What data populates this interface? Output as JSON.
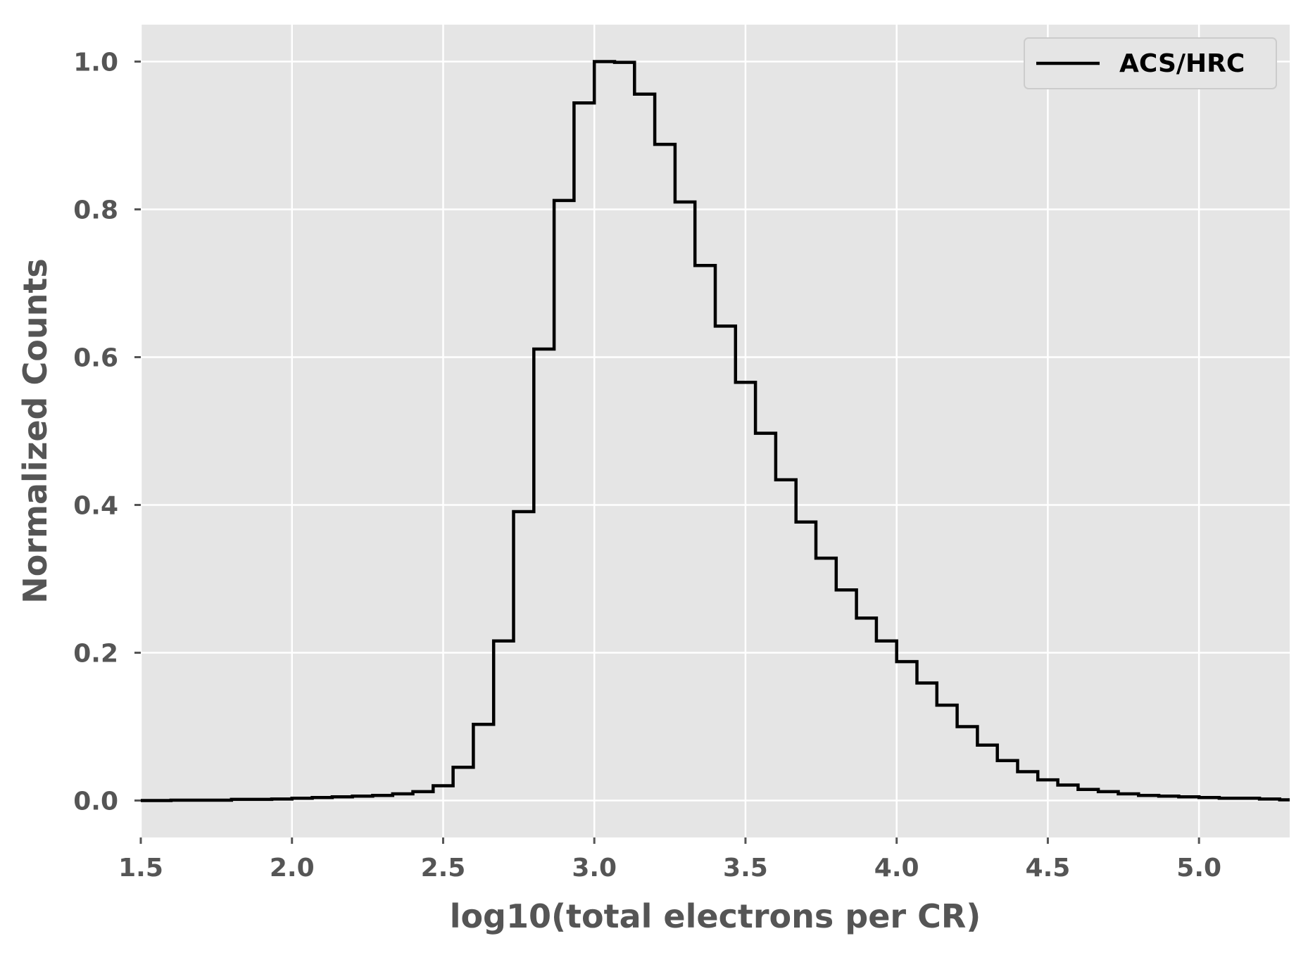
{
  "chart_data": {
    "type": "histogram",
    "style": "step",
    "title": "",
    "xlabel": "log10(total electrons per CR)",
    "ylabel": "Normalized Counts",
    "xlim": [
      1.5,
      5.3
    ],
    "ylim": [
      -0.05,
      1.05
    ],
    "grid": true,
    "legend_position": "top-right",
    "x_ticks": [
      "1.5",
      "2.0",
      "2.5",
      "3.0",
      "3.5",
      "4.0",
      "4.5",
      "5.0"
    ],
    "y_ticks": [
      "0.0",
      "0.2",
      "0.4",
      "0.6",
      "0.8",
      "1.0"
    ],
    "bin_edges": [
      1.5,
      1.6,
      1.8,
      1.933,
      2.0,
      2.067,
      2.133,
      2.2,
      2.267,
      2.333,
      2.4,
      2.467,
      2.533,
      2.6,
      2.667,
      2.733,
      2.8,
      2.867,
      2.933,
      3.0,
      3.067,
      3.133,
      3.2,
      3.267,
      3.333,
      3.4,
      3.467,
      3.533,
      3.6,
      3.667,
      3.733,
      3.8,
      3.867,
      3.933,
      4.0,
      4.067,
      4.133,
      4.2,
      4.267,
      4.333,
      4.4,
      4.467,
      4.533,
      4.6,
      4.667,
      4.733,
      4.8,
      4.867,
      4.933,
      5.0,
      5.067,
      5.133,
      5.2,
      5.267,
      5.3
    ],
    "series": [
      {
        "name": "ACS/HRC",
        "color": "#000000",
        "values": [
          0.0,
          0.0005,
          0.0015,
          0.002,
          0.003,
          0.004,
          0.005,
          0.006,
          0.007,
          0.009,
          0.012,
          0.02,
          0.045,
          0.103,
          0.216,
          0.391,
          0.611,
          0.812,
          0.944,
          1.0,
          0.999,
          0.956,
          0.888,
          0.81,
          0.724,
          0.642,
          0.566,
          0.497,
          0.434,
          0.377,
          0.328,
          0.285,
          0.247,
          0.216,
          0.188,
          0.159,
          0.129,
          0.1,
          0.075,
          0.054,
          0.039,
          0.028,
          0.021,
          0.015,
          0.012,
          0.009,
          0.007,
          0.006,
          0.005,
          0.004,
          0.003,
          0.003,
          0.002,
          0.001
        ]
      }
    ]
  },
  "colors": {
    "plot_background": "#e5e5e5",
    "grid": "#ffffff",
    "tick_text": "#555555",
    "line": "#000000"
  }
}
